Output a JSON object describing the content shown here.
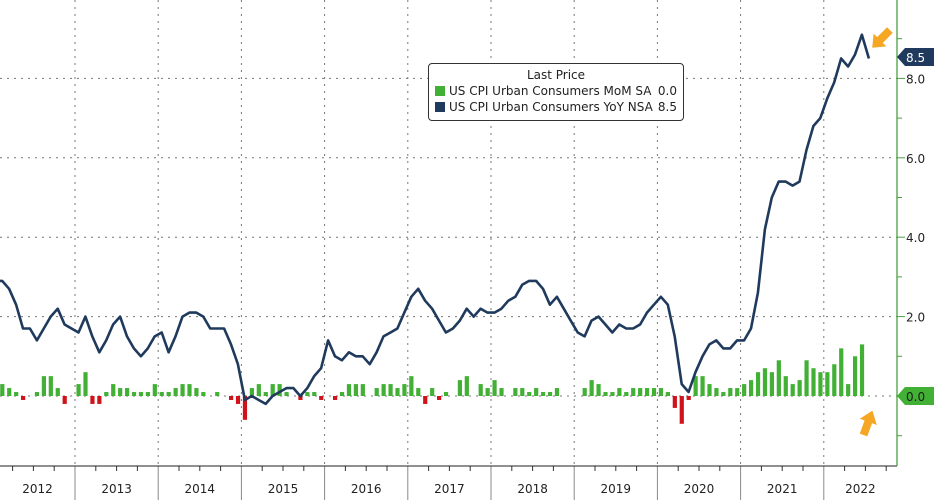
{
  "chart_data": {
    "type": "bar+line",
    "title": "",
    "legend": {
      "title": "Last Price",
      "placement": "top-center",
      "entries": [
        {
          "name": "US CPI Urban Consumers MoM SA",
          "last": "0.0",
          "color": "#41b035"
        },
        {
          "name": "US CPI Urban Consumers YoY NSA",
          "last": "8.5",
          "color": "#1f3a5c"
        }
      ]
    },
    "x_tick_labels": [
      "2012",
      "2013",
      "2014",
      "2015",
      "2016",
      "2017",
      "2018",
      "2019",
      "2020",
      "2021",
      "2022"
    ],
    "y_axis": {
      "side": "right",
      "range": [
        -1.7,
        9.9
      ],
      "tick_labels": [
        "8.0",
        "6.0",
        "4.0",
        "2.0"
      ],
      "grid": true
    },
    "callouts": {
      "yoy_last": "8.5",
      "mom_last": "0.0"
    },
    "colors": {
      "positive_bar": "#41b035",
      "negative_bar": "#d0121b",
      "line": "#1f3a5c",
      "arrow": "#f5a623",
      "axis": "#4aa040"
    },
    "series": [
      {
        "name": "US CPI Urban Consumers MoM SA",
        "type": "bar",
        "values_by_year": {
          "2012": [
            0.3,
            0.3,
            0.2,
            0.1,
            -0.1,
            0.0,
            0.1,
            0.5,
            0.5,
            0.2,
            -0.2,
            0.0
          ],
          "2013": [
            0.3,
            0.6,
            -0.2,
            -0.2,
            0.1,
            0.3,
            0.2,
            0.2,
            0.1,
            0.1,
            0.1,
            0.3
          ],
          "2014": [
            0.1,
            0.1,
            0.2,
            0.3,
            0.3,
            0.2,
            0.1,
            0.0,
            0.1,
            0.0,
            -0.1,
            -0.2
          ],
          "2015": [
            -0.6,
            0.2,
            0.3,
            0.1,
            0.3,
            0.3,
            0.1,
            0.0,
            -0.1,
            0.1,
            0.1,
            -0.1
          ],
          "2016": [
            0.0,
            -0.1,
            0.1,
            0.3,
            0.3,
            0.3,
            0.0,
            0.2,
            0.3,
            0.3,
            0.2,
            0.3
          ],
          "2017": [
            0.5,
            0.2,
            -0.2,
            0.2,
            -0.1,
            0.1,
            0.0,
            0.4,
            0.5,
            0.0,
            0.3,
            0.2
          ],
          "2018": [
            0.4,
            0.2,
            0.0,
            0.2,
            0.2,
            0.1,
            0.2,
            0.1,
            0.1,
            0.2,
            0.0,
            0.0
          ],
          "2019": [
            0.0,
            0.2,
            0.4,
            0.3,
            0.1,
            0.1,
            0.2,
            0.1,
            0.2,
            0.2,
            0.2,
            0.2
          ],
          "2020": [
            0.2,
            0.1,
            -0.3,
            -0.7,
            -0.1,
            0.5,
            0.5,
            0.3,
            0.2,
            0.1,
            0.2,
            0.2
          ],
          "2021": [
            0.3,
            0.4,
            0.6,
            0.7,
            0.6,
            0.9,
            0.5,
            0.3,
            0.4,
            0.9,
            0.7,
            0.6
          ],
          "2022": [
            0.6,
            0.8,
            1.2,
            0.3,
            1.0,
            1.3,
            0.0
          ]
        }
      },
      {
        "name": "US CPI Urban Consumers YoY NSA",
        "type": "line",
        "values_by_year": {
          "2012": [
            2.9,
            2.9,
            2.7,
            2.3,
            1.7,
            1.7,
            1.4,
            1.7,
            2.0,
            2.2,
            1.8,
            1.7
          ],
          "2013": [
            1.6,
            2.0,
            1.5,
            1.1,
            1.4,
            1.8,
            2.0,
            1.5,
            1.2,
            1.0,
            1.2,
            1.5
          ],
          "2014": [
            1.6,
            1.1,
            1.5,
            2.0,
            2.1,
            2.1,
            2.0,
            1.7,
            1.7,
            1.7,
            1.3,
            0.8
          ],
          "2015": [
            -0.1,
            0.0,
            -0.1,
            -0.2,
            0.0,
            0.1,
            0.2,
            0.2,
            0.0,
            0.2,
            0.5,
            0.7
          ],
          "2016": [
            1.4,
            1.0,
            0.9,
            1.1,
            1.0,
            1.0,
            0.8,
            1.1,
            1.5,
            1.6,
            1.7,
            2.1
          ],
          "2017": [
            2.5,
            2.7,
            2.4,
            2.2,
            1.9,
            1.6,
            1.7,
            1.9,
            2.2,
            2.0,
            2.2,
            2.1
          ],
          "2018": [
            2.1,
            2.2,
            2.4,
            2.5,
            2.8,
            2.9,
            2.9,
            2.7,
            2.3,
            2.5,
            2.2,
            1.9
          ],
          "2019": [
            1.6,
            1.5,
            1.9,
            2.0,
            1.8,
            1.6,
            1.8,
            1.7,
            1.7,
            1.8,
            2.1,
            2.3
          ],
          "2020": [
            2.5,
            2.3,
            1.5,
            0.3,
            0.1,
            0.6,
            1.0,
            1.3,
            1.4,
            1.2,
            1.2,
            1.4
          ],
          "2021": [
            1.4,
            1.7,
            2.6,
            4.2,
            5.0,
            5.4,
            5.4,
            5.3,
            5.4,
            6.2,
            6.8,
            7.0
          ],
          "2022": [
            7.5,
            7.9,
            8.5,
            8.3,
            8.6,
            9.1,
            8.5
          ]
        }
      }
    ]
  }
}
